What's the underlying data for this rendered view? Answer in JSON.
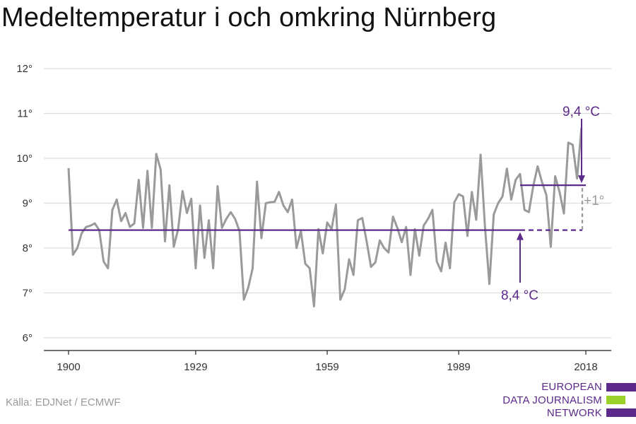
{
  "title": "Medeltemperatur i och omkring Nürnberg",
  "source": "Källa: EDJNet / ECMWF",
  "logo": {
    "lines": [
      "EUROPEAN",
      "DATA JOURNALISM",
      "NETWORK"
    ],
    "colors": {
      "purple": "#5b2a8a",
      "green": "#9bd12b"
    }
  },
  "colors": {
    "series": "#9a9a9a",
    "average": "#5b2a8a",
    "difference": "#9a9a9a",
    "grid": "#dddddd",
    "axis": "#222222"
  },
  "chart_data": {
    "type": "line",
    "title": "Medeltemperatur i och omkring Nürnberg",
    "xlabel": "",
    "ylabel": "",
    "xlim": [
      1900,
      2018
    ],
    "ylim": [
      6,
      12
    ],
    "grid": true,
    "yticks": [
      {
        "value": 6,
        "label": "6°"
      },
      {
        "value": 7,
        "label": "7°"
      },
      {
        "value": 8,
        "label": "8°"
      },
      {
        "value": 9,
        "label": "9°"
      },
      {
        "value": 10,
        "label": "10°"
      },
      {
        "value": 11,
        "label": "11°"
      },
      {
        "value": 12,
        "label": "12°"
      }
    ],
    "xticks": [
      {
        "value": 1900,
        "label": "1900"
      },
      {
        "value": 1929,
        "label": "1929"
      },
      {
        "value": 1959,
        "label": "1959"
      },
      {
        "value": 1989,
        "label": "1989"
      },
      {
        "value": 2018,
        "label": "2018"
      }
    ],
    "series": [
      {
        "x_start": 1900,
        "values": [
          9.78,
          7.85,
          8.0,
          8.33,
          8.47,
          8.5,
          8.55,
          8.4,
          7.7,
          7.55,
          8.85,
          9.08,
          8.6,
          8.78,
          8.47,
          8.55,
          9.52,
          8.45,
          9.72,
          8.45,
          10.1,
          9.75,
          8.15,
          9.4,
          8.03,
          8.42,
          9.27,
          8.78,
          9.1,
          7.55,
          8.95,
          7.78,
          8.62,
          7.55,
          9.38,
          8.45,
          8.65,
          8.8,
          8.65,
          8.38,
          6.85,
          7.12,
          7.55,
          9.48,
          8.22,
          9.0,
          9.02,
          9.03,
          9.25,
          8.95,
          8.8,
          9.08,
          8.0,
          8.38,
          7.65,
          7.55,
          6.7,
          8.42,
          7.88,
          8.57,
          8.42,
          8.97,
          6.85,
          7.08,
          7.75,
          7.4,
          8.62,
          8.67,
          8.15,
          7.58,
          7.68,
          8.17,
          8.0,
          7.9,
          8.7,
          8.45,
          8.13,
          8.47,
          7.4,
          8.42,
          7.83,
          8.5,
          8.65,
          8.85,
          7.7,
          7.48,
          8.12,
          7.55,
          9.02,
          9.2,
          9.15,
          8.27,
          9.25,
          8.63,
          10.08,
          8.47,
          7.2,
          8.75,
          9.0,
          9.15,
          9.77,
          9.08,
          9.52,
          9.65,
          8.85,
          8.8,
          9.38,
          9.82,
          9.47,
          9.18,
          8.03,
          9.6,
          9.25,
          8.77,
          10.35,
          10.3,
          9.55,
          10.68
        ]
      }
    ],
    "reference_lines": [
      {
        "value": 8.4,
        "from": 1900,
        "to": 2018,
        "solid_to": 2003,
        "label": "8,4 °C"
      },
      {
        "value": 9.4,
        "from": 2003,
        "to": 2018,
        "label": "9,4 °C"
      }
    ],
    "annotations": [
      {
        "text": "8,4 °C",
        "points_to_year": 2003,
        "points_to_value": 8.4
      },
      {
        "text": "9,4 °C",
        "points_to_year": 2018,
        "points_to_value": 9.4
      },
      {
        "text": "+1°",
        "year": 2018,
        "between": [
          8.4,
          9.4
        ]
      }
    ]
  }
}
